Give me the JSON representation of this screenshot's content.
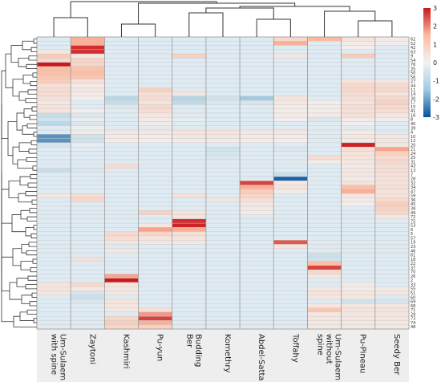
{
  "chart_data": {
    "type": "heatmap",
    "title": "",
    "columns": [
      "Um-Sulaem\nwith spine",
      "Zaytoni",
      "Kashmiri",
      "Pu-yun",
      "Budding\nBer",
      "Komethry",
      "Abdel-Satta",
      "Toffahy",
      "Um-Sulaem\nwithout\nspine",
      "Pu-Pineau",
      "Seedy Ber"
    ],
    "rows": [
      "62",
      "52",
      "42",
      "63",
      "9",
      "54",
      "76",
      "35",
      "50",
      "56",
      "27",
      "44",
      "11",
      "14",
      "30",
      "17",
      "15",
      "41",
      "16",
      "8",
      "40",
      "39",
      "4",
      "10",
      "12",
      "20",
      "21",
      "24",
      "25",
      "31",
      "43",
      "13",
      "7",
      "28",
      "32",
      "34",
      "47",
      "59",
      "36",
      "45",
      "38",
      "49",
      "72",
      "75",
      "53",
      "6",
      "5",
      "57",
      "19",
      "23",
      "46",
      "61",
      "18",
      "22",
      "37",
      "70",
      "26",
      "2",
      "33",
      "55",
      "51",
      "60",
      "69",
      "68",
      "71",
      "29",
      "73",
      "74",
      "48"
    ],
    "matrix": [
      [
        0.0,
        1.6,
        0.0,
        0.0,
        0.0,
        0.0,
        0.0,
        0.7,
        1.5,
        0.4,
        0.2
      ],
      [
        0.0,
        1.6,
        0.0,
        0.0,
        0.0,
        0.0,
        0.0,
        1.6,
        0.0,
        0.2,
        0.1
      ],
      [
        0.0,
        2.8,
        0.0,
        0.0,
        0.0,
        0.0,
        0.0,
        0.0,
        0.0,
        0.1,
        0.0
      ],
      [
        0.3,
        2.8,
        0.0,
        0.0,
        0.0,
        0.0,
        0.0,
        0.0,
        0.0,
        0.0,
        0.0
      ],
      [
        1.1,
        0.3,
        0.0,
        0.0,
        0.9,
        0.0,
        0.0,
        0.3,
        0.0,
        1.1,
        0.0
      ],
      [
        0.7,
        0.9,
        0.0,
        0.0,
        0.0,
        0.0,
        0.0,
        0.0,
        0.0,
        0.0,
        0.0
      ],
      [
        3.0,
        0.8,
        0.0,
        0.0,
        0.0,
        0.0,
        0.0,
        0.0,
        0.0,
        0.0,
        0.0
      ],
      [
        1.4,
        1.3,
        0.0,
        0.0,
        0.0,
        0.0,
        0.0,
        0.0,
        0.0,
        0.0,
        0.0
      ],
      [
        1.4,
        1.4,
        0.0,
        0.0,
        0.0,
        0.0,
        0.0,
        0.0,
        0.0,
        0.0,
        0.0
      ],
      [
        1.2,
        1.2,
        0.0,
        0.0,
        0.0,
        0.0,
        0.0,
        0.0,
        0.0,
        0.0,
        0.0
      ],
      [
        1.0,
        0.5,
        0.0,
        0.0,
        0.0,
        0.0,
        0.0,
        0.0,
        0.0,
        0.4,
        0.3
      ],
      [
        0.5,
        0.2,
        0.0,
        0.0,
        0.0,
        0.0,
        0.0,
        0.0,
        0.0,
        0.7,
        0.6
      ],
      [
        0.6,
        0.3,
        0.0,
        0.9,
        0.0,
        0.0,
        0.0,
        0.0,
        0.0,
        0.7,
        0.7
      ],
      [
        0.6,
        0.2,
        0.0,
        0.5,
        0.3,
        0.0,
        0.0,
        0.0,
        0.0,
        0.6,
        0.4
      ],
      [
        0.5,
        0.1,
        -1.0,
        0.6,
        -1.1,
        -0.6,
        -1.5,
        0.4,
        0.0,
        0.5,
        0.7
      ],
      [
        0.3,
        0.0,
        -0.8,
        0.4,
        -0.9,
        -0.4,
        -0.5,
        0.3,
        0.1,
        0.4,
        0.9
      ],
      [
        0.4,
        0.0,
        -0.4,
        0.7,
        0.0,
        0.0,
        0.0,
        0.2,
        0.2,
        0.6,
        0.7
      ],
      [
        0.4,
        0.1,
        -0.3,
        0.6,
        0.0,
        0.0,
        0.0,
        0.2,
        0.2,
        0.5,
        0.6
      ],
      [
        -0.8,
        -0.4,
        0.0,
        0.3,
        -0.3,
        0.0,
        0.0,
        0.2,
        0.2,
        0.5,
        0.3
      ],
      [
        -0.6,
        -0.2,
        0.0,
        0.2,
        -0.2,
        0.0,
        0.0,
        0.1,
        -0.4,
        0.2,
        0.2
      ],
      [
        -1.0,
        -0.4,
        0.0,
        0.2,
        0.0,
        0.0,
        0.0,
        0.0,
        0.0,
        0.1,
        0.0
      ],
      [
        -0.3,
        -0.1,
        0.0,
        0.0,
        0.0,
        0.0,
        0.0,
        0.0,
        -0.3,
        0.0,
        0.0
      ],
      [
        0.0,
        0.2,
        0.3,
        0.3,
        0.4,
        0.4,
        0.3,
        0.3,
        0.0,
        0.2,
        0.0
      ],
      [
        -2.2,
        -0.6,
        0.2,
        0.2,
        0.3,
        0.3,
        0.2,
        0.2,
        0.0,
        0.3,
        0.3
      ],
      [
        -2.2,
        -0.6,
        0.2,
        0.1,
        0.2,
        0.2,
        0.2,
        0.1,
        0.0,
        0.2,
        0.3
      ],
      [
        -0.5,
        -0.2,
        0.0,
        0.0,
        0.0,
        0.0,
        0.0,
        0.0,
        0.0,
        2.9,
        0.3
      ],
      [
        0.0,
        0.0,
        0.0,
        0.0,
        0.0,
        -0.6,
        0.0,
        -0.4,
        0.0,
        0.5,
        1.7
      ],
      [
        0.0,
        0.0,
        0.0,
        0.0,
        0.0,
        -0.5,
        -0.3,
        -0.3,
        0.0,
        0.4,
        0.9
      ],
      [
        0.0,
        0.0,
        0.0,
        0.0,
        0.0,
        -0.4,
        0.0,
        0.0,
        0.6,
        0.4,
        0.6
      ],
      [
        0.0,
        0.0,
        0.0,
        0.0,
        0.0,
        0.0,
        0.0,
        0.0,
        0.2,
        0.3,
        0.7
      ],
      [
        0.0,
        0.0,
        0.6,
        0.0,
        0.0,
        0.0,
        0.0,
        0.0,
        0.0,
        0.2,
        0.5
      ],
      [
        -0.8,
        -0.4,
        -0.3,
        0.0,
        0.0,
        0.0,
        0.0,
        0.0,
        0.0,
        0.3,
        0.6
      ],
      [
        0.0,
        0.0,
        0.0,
        0.0,
        0.0,
        0.0,
        0.0,
        -0.7,
        0.0,
        0.3,
        0.5
      ],
      [
        0.0,
        0.0,
        0.0,
        0.0,
        0.0,
        0.0,
        0.0,
        -2.8,
        0.0,
        0.2,
        0.4
      ],
      [
        0.0,
        0.0,
        0.0,
        0.0,
        0.0,
        0.0,
        2.6,
        0.3,
        0.0,
        0.4,
        0.4
      ],
      [
        0.0,
        0.0,
        0.0,
        0.0,
        0.0,
        0.0,
        1.6,
        0.4,
        0.0,
        1.4,
        0.5
      ],
      [
        0.0,
        0.0,
        0.0,
        0.0,
        0.0,
        0.0,
        1.0,
        0.2,
        0.0,
        1.6,
        0.4
      ],
      [
        0.3,
        0.6,
        0.0,
        0.0,
        0.5,
        0.0,
        0.8,
        0.0,
        0.0,
        0.3,
        0.4
      ],
      [
        0.0,
        0.7,
        0.0,
        0.0,
        0.0,
        0.4,
        0.5,
        0.0,
        0.0,
        0.2,
        0.7
      ],
      [
        0.0,
        0.0,
        0.0,
        0.0,
        0.0,
        0.0,
        0.3,
        0.0,
        0.0,
        0.1,
        1.0
      ],
      [
        0.0,
        0.0,
        0.0,
        0.0,
        0.0,
        0.0,
        0.3,
        0.0,
        0.0,
        0.0,
        0.9
      ],
      [
        0.0,
        0.0,
        0.0,
        0.9,
        0.4,
        0.0,
        0.2,
        0.0,
        0.0,
        0.0,
        0.8
      ],
      [
        0.0,
        0.0,
        0.0,
        0.0,
        0.4,
        0.0,
        0.0,
        0.0,
        0.0,
        0.0,
        0.3
      ],
      [
        0.0,
        0.0,
        0.0,
        0.0,
        2.8,
        0.0,
        0.0,
        0.0,
        0.0,
        0.0,
        0.0
      ],
      [
        0.0,
        0.0,
        0.0,
        0.3,
        2.9,
        0.0,
        0.0,
        0.0,
        0.0,
        0.0,
        0.0
      ],
      [
        0.0,
        0.0,
        0.0,
        1.7,
        1.6,
        0.0,
        0.0,
        0.0,
        0.0,
        0.0,
        0.0
      ],
      [
        0.0,
        0.0,
        0.7,
        0.8,
        0.5,
        0.0,
        0.0,
        0.0,
        0.0,
        0.0,
        0.0
      ],
      [
        0.0,
        0.0,
        0.6,
        0.4,
        0.4,
        0.0,
        0.0,
        0.0,
        0.0,
        0.0,
        0.0
      ],
      [
        0.0,
        0.0,
        0.4,
        0.3,
        0.3,
        0.0,
        0.0,
        2.4,
        0.0,
        0.0,
        0.0
      ],
      [
        0.0,
        0.0,
        0.0,
        0.0,
        0.0,
        0.0,
        0.0,
        0.4,
        0.0,
        0.0,
        0.0
      ],
      [
        0.0,
        0.0,
        0.3,
        0.0,
        0.0,
        0.0,
        0.0,
        0.0,
        -0.3,
        -0.3,
        -0.3
      ],
      [
        0.0,
        0.0,
        0.0,
        0.0,
        0.0,
        0.0,
        0.0,
        0.0,
        -0.7,
        0.0,
        0.0
      ],
      [
        0.0,
        0.5,
        0.0,
        0.0,
        0.0,
        0.0,
        0.0,
        0.0,
        -0.6,
        0.0,
        0.0
      ],
      [
        0.0,
        0.0,
        0.0,
        0.0,
        0.0,
        0.0,
        0.0,
        0.0,
        1.4,
        0.0,
        0.0
      ],
      [
        0.0,
        0.0,
        0.0,
        0.0,
        0.0,
        0.0,
        0.0,
        0.0,
        2.6,
        0.0,
        0.0
      ],
      [
        0.0,
        0.0,
        0.0,
        0.0,
        0.0,
        0.0,
        0.0,
        0.0,
        0.7,
        0.0,
        0.0
      ],
      [
        0.0,
        0.0,
        1.7,
        0.0,
        0.0,
        0.0,
        0.0,
        0.0,
        0.3,
        0.0,
        0.0
      ],
      [
        0.0,
        0.0,
        3.0,
        0.0,
        0.0,
        0.0,
        0.0,
        0.0,
        0.0,
        0.0,
        0.0
      ],
      [
        0.4,
        0.7,
        0.4,
        0.0,
        0.0,
        0.0,
        0.0,
        0.0,
        0.0,
        0.2,
        0.0
      ],
      [
        0.4,
        0.3,
        0.3,
        0.0,
        0.0,
        0.0,
        0.0,
        0.0,
        0.3,
        0.2,
        0.2
      ],
      [
        0.3,
        -0.5,
        0.3,
        0.0,
        0.0,
        0.0,
        0.0,
        0.0,
        0.4,
        0.3,
        0.3
      ],
      [
        0.0,
        -0.7,
        0.0,
        0.0,
        0.0,
        0.0,
        0.0,
        0.0,
        0.3,
        0.3,
        0.0
      ],
      [
        0.0,
        -0.4,
        0.4,
        0.0,
        0.0,
        0.0,
        0.0,
        0.0,
        0.0,
        -0.6,
        -0.5
      ],
      [
        0.0,
        0.0,
        0.3,
        0.0,
        0.0,
        0.0,
        0.0,
        0.0,
        0.3,
        0.3,
        0.3
      ],
      [
        0.0,
        0.0,
        0.3,
        0.5,
        0.0,
        0.0,
        0.0,
        0.0,
        1.2,
        0.4,
        0.4
      ],
      [
        0.0,
        0.0,
        0.0,
        1.8,
        0.0,
        0.0,
        0.0,
        0.0,
        0.3,
        0.3,
        0.3
      ],
      [
        0.0,
        0.0,
        0.8,
        2.6,
        0.0,
        0.0,
        0.0,
        0.0,
        0.3,
        0.3,
        0.3
      ],
      [
        0.0,
        0.0,
        1.0,
        1.6,
        0.0,
        0.0,
        0.0,
        0.0,
        0.3,
        0.3,
        0.3
      ],
      [
        0.0,
        0.0,
        0.8,
        0.9,
        0.0,
        0.0,
        0.0,
        0.0,
        0.3,
        0.3,
        0.3
      ]
    ],
    "color_scale": {
      "min": -3,
      "max": 3,
      "colors": [
        "#08519c",
        "#9ecae1",
        "#f2f2f2",
        "#fcbba1",
        "#cb181d"
      ],
      "ticks": [
        "3",
        "2",
        "1",
        "0",
        "-1",
        "-2",
        "-3"
      ]
    },
    "legend_placement": "top-right",
    "dendrogram": {
      "rows": true,
      "columns": true
    }
  }
}
